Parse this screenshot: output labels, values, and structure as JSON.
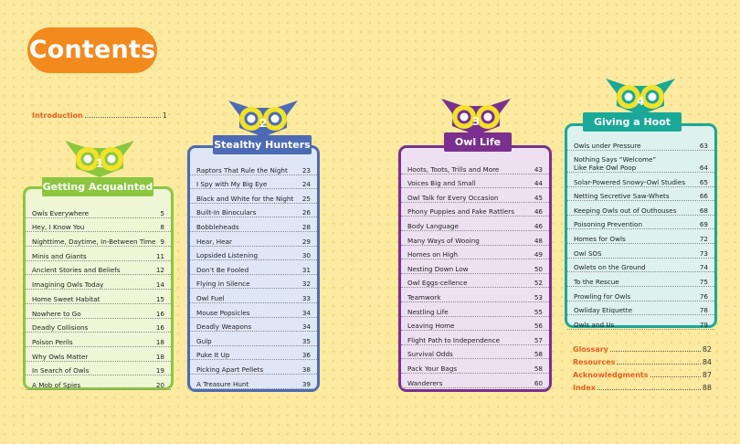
{
  "header": {
    "title": "Contents"
  },
  "intro": {
    "label": "Introduction",
    "page": "1"
  },
  "colors": {
    "orange": "#f28a1e",
    "green": "#8cc63f",
    "blue": "#4d6bb5",
    "purple": "#7b2f8f",
    "teal": "#1aa898",
    "yellow": "#f2e229"
  },
  "sections": [
    {
      "number": "1",
      "title": "Getting Acquainted",
      "color": "#8cc63f",
      "card_bg": "#eef6d6",
      "entries": [
        {
          "title": "Owls Everywhere",
          "page": "5"
        },
        {
          "title": "Hey, I Know You",
          "page": "8"
        },
        {
          "title": "Nighttime, Daytime, In-Between Time",
          "page": "9"
        },
        {
          "title": "Minis and Giants",
          "page": "11"
        },
        {
          "title": "Ancient Stories and Beliefs",
          "page": "12"
        },
        {
          "title": "Imagining Owls Today",
          "page": "14"
        },
        {
          "title": "Home Sweet Habitat",
          "page": "15"
        },
        {
          "title": "Nowhere to Go",
          "page": "16"
        },
        {
          "title": "Deadly Collisions",
          "page": "16"
        },
        {
          "title": "Poison Perils",
          "page": "18"
        },
        {
          "title": "Why Owls Matter",
          "page": "18"
        },
        {
          "title": "In Search of Owls",
          "page": "19"
        },
        {
          "title": "A Mob of Spies",
          "page": "20"
        }
      ]
    },
    {
      "number": "2",
      "title": "Stealthy Hunters",
      "color": "#4d6bb5",
      "card_bg": "#dfe6f5",
      "entries": [
        {
          "title": "Raptors That Rule the Night",
          "page": "23"
        },
        {
          "title": "I Spy with My Big Eye",
          "page": "24"
        },
        {
          "title": "Black and White for the Night",
          "page": "25"
        },
        {
          "title": "Built-In Binoculars",
          "page": "26"
        },
        {
          "title": "Bobbleheads",
          "page": "28"
        },
        {
          "title": "Hear, Hear",
          "page": "29"
        },
        {
          "title": "Lopsided Listening",
          "page": "30"
        },
        {
          "title": "Don’t Be Fooled",
          "page": "31"
        },
        {
          "title": "Flying in Silence",
          "page": "32"
        },
        {
          "title": "Owl Fuel",
          "page": "33"
        },
        {
          "title": "Mouse Popsicles",
          "page": "34"
        },
        {
          "title": "Deadly Weapons",
          "page": "34"
        },
        {
          "title": "Gulp",
          "page": "35"
        },
        {
          "title": "Puke It Up",
          "page": "36"
        },
        {
          "title": "Picking Apart Pellets",
          "page": "38"
        },
        {
          "title": "A Treasure Hunt",
          "page": "39"
        }
      ]
    },
    {
      "number": "3",
      "title": "Owl Life",
      "color": "#7b2f8f",
      "card_bg": "#ece0f1",
      "entries": [
        {
          "title": "Hoots, Toots, Trills and More",
          "page": "43"
        },
        {
          "title": "Voices Big and Small",
          "page": "44"
        },
        {
          "title": "Owl Talk for Every Occasion",
          "page": "45"
        },
        {
          "title": "Phony Puppies and Fake Rattlers",
          "page": "46"
        },
        {
          "title": "Body Language",
          "page": "46"
        },
        {
          "title": "Many Ways of Wooing",
          "page": "48"
        },
        {
          "title": "Homes on High",
          "page": "49"
        },
        {
          "title": "Nesting Down Low",
          "page": "50"
        },
        {
          "title": "Owl Eggs-cellence",
          "page": "52"
        },
        {
          "title": "Teamwork",
          "page": "53"
        },
        {
          "title": "Nestling Life",
          "page": "55"
        },
        {
          "title": "Leaving Home",
          "page": "56"
        },
        {
          "title": "Flight Path to Independence",
          "page": "57"
        },
        {
          "title": "Survival Odds",
          "page": "58"
        },
        {
          "title": "Pack Your Bags",
          "page": "58"
        },
        {
          "title": "Wanderers",
          "page": "60"
        }
      ]
    },
    {
      "number": "4",
      "title": "Giving a Hoot",
      "color": "#1aa898",
      "card_bg": "#ddf1ee",
      "entries": [
        {
          "title": "Owls under Pressure",
          "page": "63"
        },
        {
          "title": "Nothing Says “Welcome”",
          "title2": "Like Fake Owl Poop",
          "page": "64"
        },
        {
          "title": "Solar-Powered Snowy-Owl Studies",
          "page": "65"
        },
        {
          "title": "Netting Secretive Saw-Whets",
          "page": "66"
        },
        {
          "title": "Keeping Owls out of Outhouses",
          "page": "68"
        },
        {
          "title": "Poisoning Prevention",
          "page": "69"
        },
        {
          "title": "Homes for Owls",
          "page": "72"
        },
        {
          "title": "Owl SOS",
          "page": "73"
        },
        {
          "title": "Owlets on the Ground",
          "page": "74"
        },
        {
          "title": "To the Rescue",
          "page": "75"
        },
        {
          "title": "Prowling for Owls",
          "page": "76"
        },
        {
          "title": "Owliday Etiquette",
          "page": "78"
        },
        {
          "title": "Owls and Us",
          "page": "79"
        }
      ]
    }
  ],
  "back_matter": [
    {
      "label": "Glossary",
      "page": "82"
    },
    {
      "label": "Resources",
      "page": "84"
    },
    {
      "label": "Acknowledgments",
      "page": "87"
    },
    {
      "label": "Index",
      "page": "88"
    }
  ]
}
